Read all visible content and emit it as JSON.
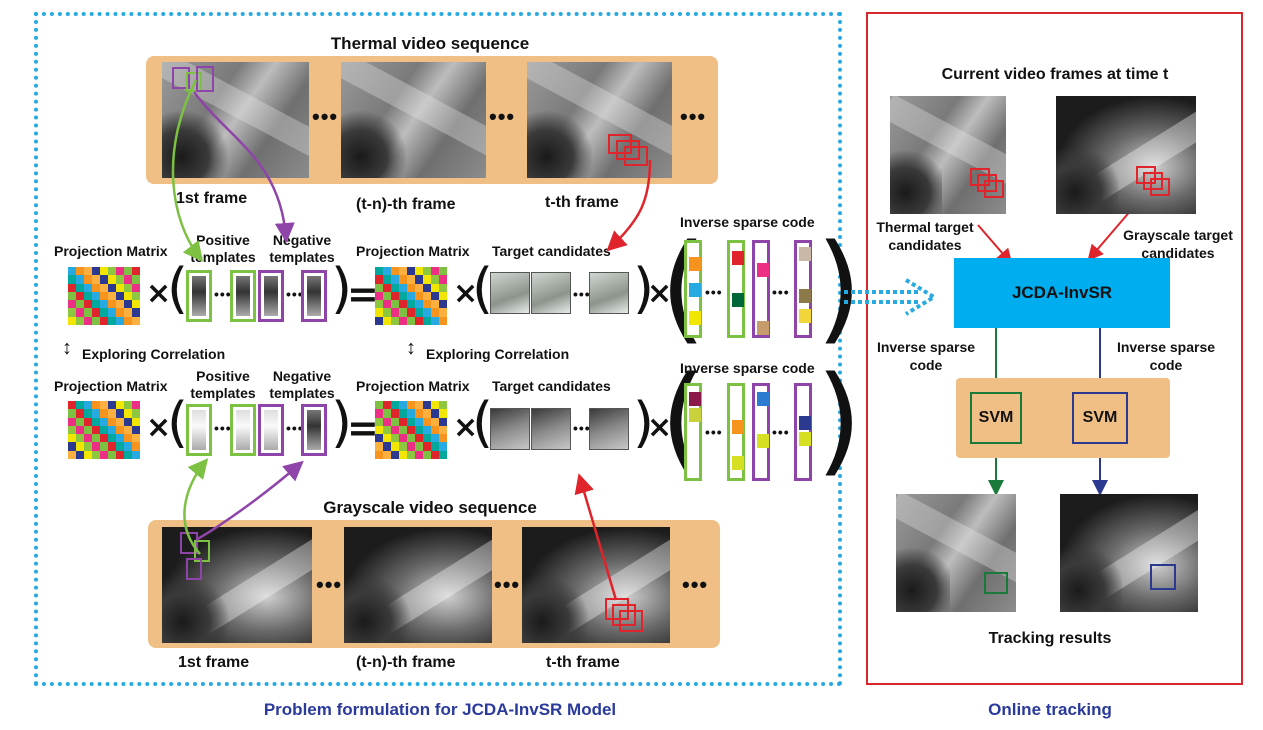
{
  "left_panel": {
    "caption": "Problem formulation for JCDA-InvSR Model",
    "thermal_title": "Thermal video sequence",
    "grayscale_title": "Grayscale video sequence",
    "frame_labels": [
      "1st frame",
      "(t-n)-th frame",
      "t-th frame"
    ],
    "ellipsis": "•••",
    "projection_matrix": "Projection Matrix",
    "positive_templates": "Positive templates",
    "negative_templates": "Negative templates",
    "target_candidates": "Target candidates",
    "inverse_sparse_code": "Inverse sparse code",
    "exploring_correlation": "Exploring Correlation",
    "times": "×",
    "equals": "="
  },
  "right_panel": {
    "caption": "Online tracking",
    "current_frames": "Current video frames at time t",
    "thermal_candidates": "Thermal target candidates",
    "grayscale_candidates": "Grayscale target candidates",
    "model": "JCDA-InvSR",
    "inverse_sparse_code": "Inverse sparse code",
    "svm": "SVM",
    "tracking_results": "Tracking results"
  },
  "colors": {
    "dotted_border": "#27a9e1",
    "red_border": "#d7262c",
    "band": "#efbf85",
    "model_box": "#00aeef",
    "positive": "#7cc142",
    "negative": "#8e44a8",
    "candidate_arrow": "#e0242b",
    "svm_green": "#1a7a3a",
    "svm_blue": "#2b3990"
  }
}
